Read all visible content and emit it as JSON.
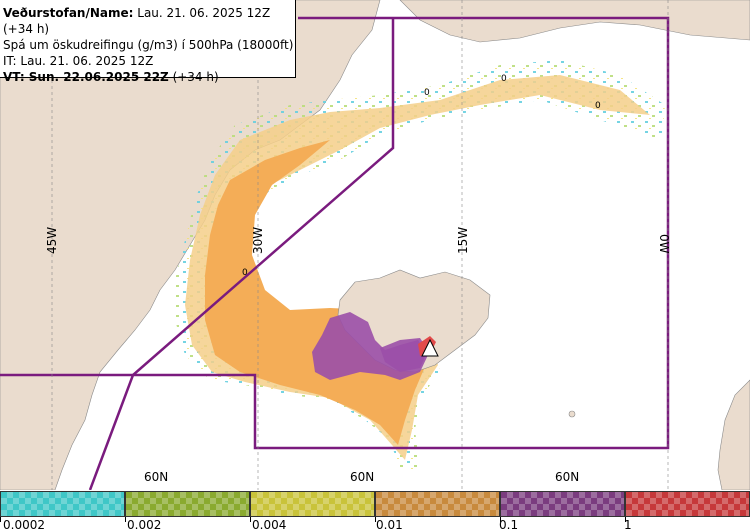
{
  "info": {
    "line1_bold": "Veðurstofan/Name:",
    "line1_rest": " Lau. 21. 06. 2025 12Z (+34 h)",
    "line2": "Spá um öskudreifingu (g/m3) í 500hPa (18000ft)",
    "line3": "IT: Lau. 21. 06. 2025 12Z",
    "line4_bold": "VT: Sun. 22.06.2025 22Z",
    "line4_rest": " (+34 h)"
  },
  "grid_labels": {
    "lon_45w": "45W",
    "lon_30w": "30W",
    "lon_15w": "15W",
    "lon_0w": "0W",
    "lat_60n_a": "60N",
    "lat_60n_b": "60N",
    "lat_60n_c": "60N",
    "zero_a": "0",
    "zero_b": "0",
    "zero_c": "0",
    "zero_d": "0"
  },
  "colors": {
    "land": "#eadcce",
    "sea": "#ffffff",
    "boundary": "#7a1b7e",
    "ash_light": "#f5cf8a",
    "ash_orange": "#f4ad57",
    "ash_purple": "#9b4fa8",
    "ash_red": "#e24a4a"
  },
  "legend": {
    "labels": [
      "0.0002",
      "0.002",
      "0.004",
      "0.01",
      "0.1",
      "1"
    ],
    "swatch_colors": [
      "#3fc7c7",
      "#8aaa2f",
      "#c9c33a",
      "#c88a3d",
      "#7b3c7f",
      "#c6383a"
    ]
  }
}
